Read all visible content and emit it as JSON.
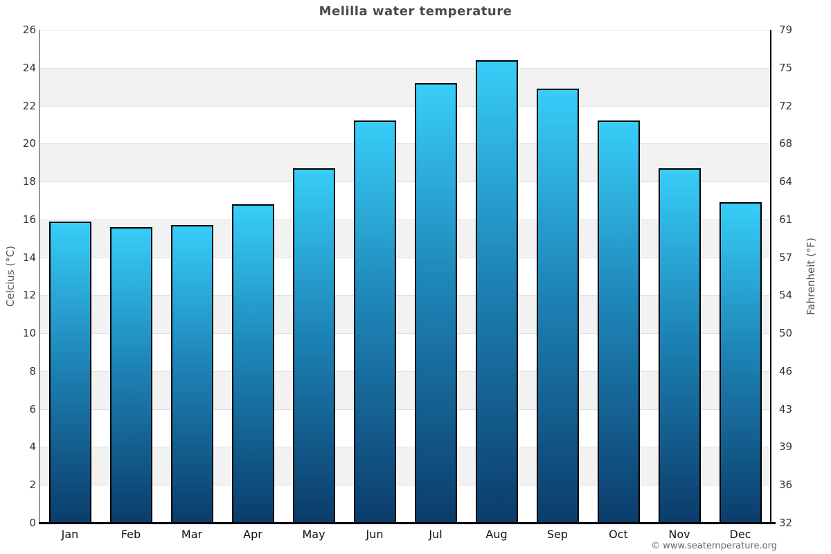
{
  "page": {
    "footer": "© www.seatemperature.org"
  },
  "chart_data": {
    "type": "bar",
    "title": "Melilla water temperature",
    "categories": [
      "Jan",
      "Feb",
      "Mar",
      "Apr",
      "May",
      "Jun",
      "Jul",
      "Aug",
      "Sep",
      "Oct",
      "Nov",
      "Dec"
    ],
    "values": [
      15.9,
      15.6,
      15.7,
      16.8,
      18.7,
      21.2,
      23.2,
      24.4,
      22.9,
      21.2,
      18.7,
      16.9
    ],
    "series_name": "Water temperature",
    "xlabel": "",
    "ylabel_left": "Celcius (°C)",
    "ylabel_right": "Fahrenheit (°F)",
    "ylim": [
      0,
      26
    ],
    "celsius_ticks": [
      0,
      2,
      4,
      6,
      8,
      10,
      12,
      14,
      16,
      18,
      20,
      22,
      24,
      26
    ],
    "fahrenheit_ticks": [
      32,
      36,
      39,
      43,
      46,
      50,
      54,
      57,
      61,
      64,
      68,
      72,
      75,
      79
    ],
    "legend": "none",
    "grid": "alternating-horizontal-bands",
    "colors": {
      "bar_gradient_top": "#38CDF8",
      "bar_gradient_mid": "#1E86B8",
      "bar_gradient_bottom": "#0B3C6B",
      "bar_border": "#000000",
      "band_gray": "#f2f2f2",
      "gridline": "#e0e0e0",
      "title_text": "#4a4a4a",
      "tick_text": "#333333",
      "axis_title_text": "#555555",
      "footer_text": "#666666"
    }
  }
}
